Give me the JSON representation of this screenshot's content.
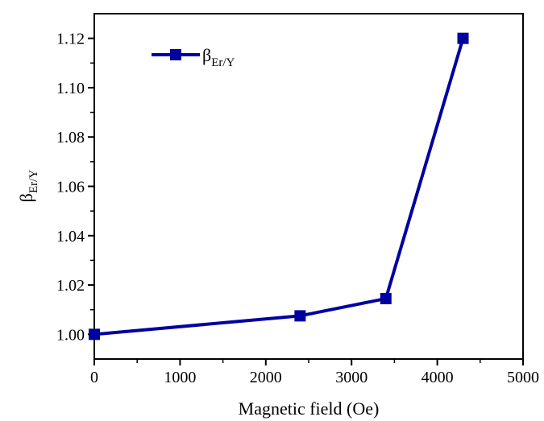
{
  "chart_data": {
    "type": "line",
    "title": "",
    "xlabel": "Magnetic field (Oe)",
    "ylabel": {
      "main": "β",
      "sub": "Er/Y"
    },
    "xlim": [
      0,
      5000
    ],
    "ylim": [
      0.99,
      1.13
    ],
    "x_ticks": [
      "0",
      "1000",
      "2000",
      "3000",
      "4000",
      "5000"
    ],
    "y_ticks": [
      "1.00",
      "1.02",
      "1.04",
      "1.06",
      "1.08",
      "1.10",
      "1.12"
    ],
    "grid": false,
    "legend_position": "top-left",
    "series": [
      {
        "name": {
          "main": "β",
          "sub": "Er/Y"
        },
        "color": "#0000a0",
        "marker": "square",
        "x": [
          0,
          2400,
          3400,
          4300
        ],
        "y": [
          1.0,
          1.0075,
          1.0145,
          1.12
        ]
      }
    ]
  }
}
